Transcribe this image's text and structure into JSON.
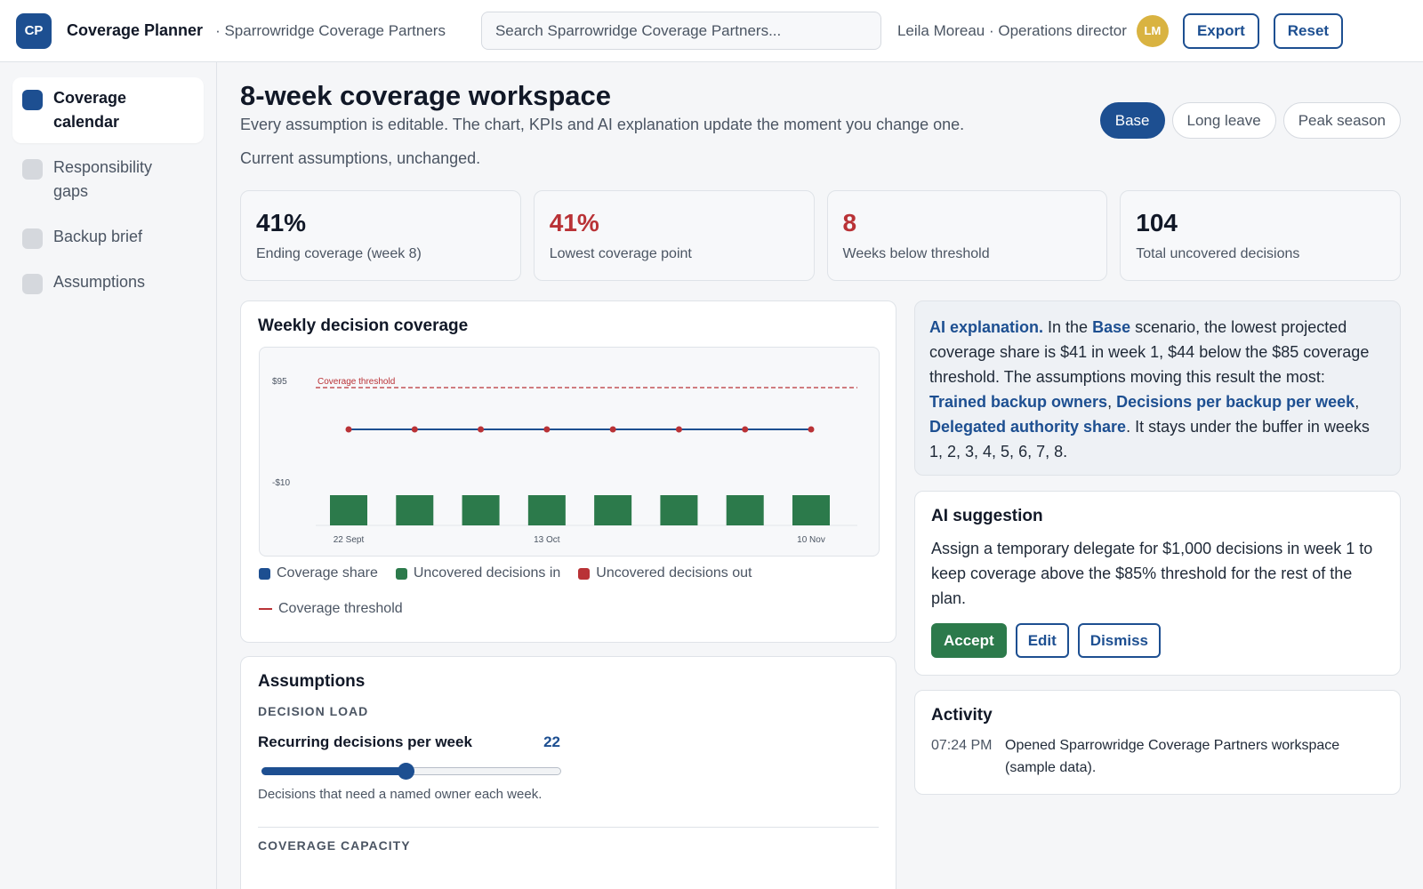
{
  "app": {
    "logo": "CP",
    "title": "Coverage Planner",
    "org": "· Sparrowridge Coverage Partners",
    "search_placeholder": "Search Sparrowridge Coverage Partners...",
    "user": "Leila Moreau · Operations director",
    "avatar": "LM",
    "export_label": "Export",
    "reset_label": "Reset"
  },
  "sidebar": {
    "items": [
      {
        "label": "Coverage calendar",
        "active": true
      },
      {
        "label": "Responsibility gaps",
        "active": false
      },
      {
        "label": "Backup brief",
        "active": false
      },
      {
        "label": "Assumptions",
        "active": false
      }
    ]
  },
  "page": {
    "title": "8-week coverage workspace",
    "subtitle": "Every assumption is editable. The chart, KPIs and AI explanation update the moment you change one.",
    "status": "Current assumptions, unchanged.",
    "scenarios": [
      "Base",
      "Long leave",
      "Peak season"
    ],
    "active_scenario": "Base"
  },
  "kpis": [
    {
      "value": "41%",
      "label": "Ending coverage (week 8)",
      "red": false
    },
    {
      "value": "41%",
      "label": "Lowest coverage point",
      "red": true
    },
    {
      "value": "8",
      "label": "Weeks below threshold",
      "red": true
    },
    {
      "value": "104",
      "label": "Total uncovered decisions",
      "red": false
    }
  ],
  "chart": {
    "title": "Weekly decision coverage",
    "legend": [
      "Coverage share",
      "Uncovered decisions in",
      "Uncovered decisions out",
      "Coverage threshold"
    ],
    "threshold_label": "Coverage threshold"
  },
  "chart_data": {
    "type": "bar",
    "title": "Weekly decision coverage",
    "y_tick_labels": [
      "$95",
      "-$10"
    ],
    "x_tick_labels": [
      "22 Sept",
      "13 Oct",
      "10 Nov"
    ],
    "ylim": [
      -10,
      95
    ],
    "threshold": 85,
    "weeks": [
      1,
      2,
      3,
      4,
      5,
      6,
      7,
      8
    ],
    "series": [
      {
        "name": "Coverage share",
        "kind": "line",
        "values": [
          41,
          41,
          41,
          41,
          41,
          41,
          41,
          41
        ]
      },
      {
        "name": "Uncovered decisions in",
        "kind": "bar",
        "values": [
          13,
          13,
          13,
          13,
          13,
          13,
          13,
          13
        ]
      },
      {
        "name": "Uncovered decisions out",
        "kind": "bar",
        "values": [
          0,
          0,
          0,
          0,
          0,
          0,
          0,
          0
        ]
      }
    ],
    "colors": {
      "line": "#1d4f91",
      "points": "#b93236",
      "bars": "#2c7a4b",
      "threshold": "#b93236"
    }
  },
  "ai": {
    "heading": "AI explanation.",
    "t1": " In the ",
    "scenario": "Base",
    "t2": " scenario, the lowest projected coverage share is $41 in week 1, $44 below the $85 coverage threshold. The assumptions moving this result the most: ",
    "f1": "Trained backup owners",
    "sep1": ", ",
    "f2": "Decisions per backup per week",
    "sep2": ", ",
    "f3": "Delegated authority share",
    "t3": ". It stays under the buffer in weeks 1, 2, 3, 4, 5, 6, 7, 8."
  },
  "suggestion": {
    "title": "AI suggestion",
    "text": "Assign a temporary delegate for $1,000 decisions in week 1 to keep coverage above the $85% threshold for the rest of the plan.",
    "accept": "Accept",
    "edit": "Edit",
    "dismiss": "Dismiss"
  },
  "activity": {
    "title": "Activity",
    "items": [
      {
        "time": "07:24 PM",
        "text": "Opened Sparrowridge Coverage Partners workspace (sample data)."
      }
    ]
  },
  "assumptions": {
    "title": "Assumptions",
    "section1": "DECISION LOAD",
    "field_label": "Recurring decisions per week",
    "field_value": "22",
    "field_fraction": 0.48,
    "field_help": "Decisions that need a named owner each week.",
    "section2": "COVERAGE CAPACITY"
  }
}
